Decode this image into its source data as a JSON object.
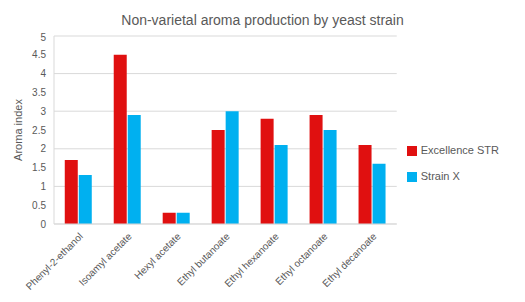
{
  "chart_data": {
    "type": "bar",
    "title": "Non-varietal aroma production by yeast strain",
    "y_label": "Aroma index",
    "categories": [
      "Phenyl-2-ethanol",
      "Isoamyl acetate",
      "Hexyl acetate",
      "Ethyl butanoate",
      "Ethyl hexanoate",
      "Ethyl octanoate",
      "Ethyl decanoate"
    ],
    "series": [
      {
        "name": "Excellence STR",
        "color": "#e01010",
        "values": [
          1.7,
          4.5,
          0.3,
          2.5,
          2.8,
          2.9,
          2.1
        ]
      },
      {
        "name": "Strain X",
        "color": "#00b0f0",
        "values": [
          1.3,
          2.9,
          0.3,
          3.0,
          2.1,
          2.5,
          1.6
        ]
      }
    ],
    "ylim": [
      0,
      5
    ],
    "yticks": [
      0,
      0.5,
      1,
      1.5,
      2,
      2.5,
      3,
      3.5,
      4,
      4.5,
      5
    ],
    "grid": true,
    "legend": "right"
  }
}
